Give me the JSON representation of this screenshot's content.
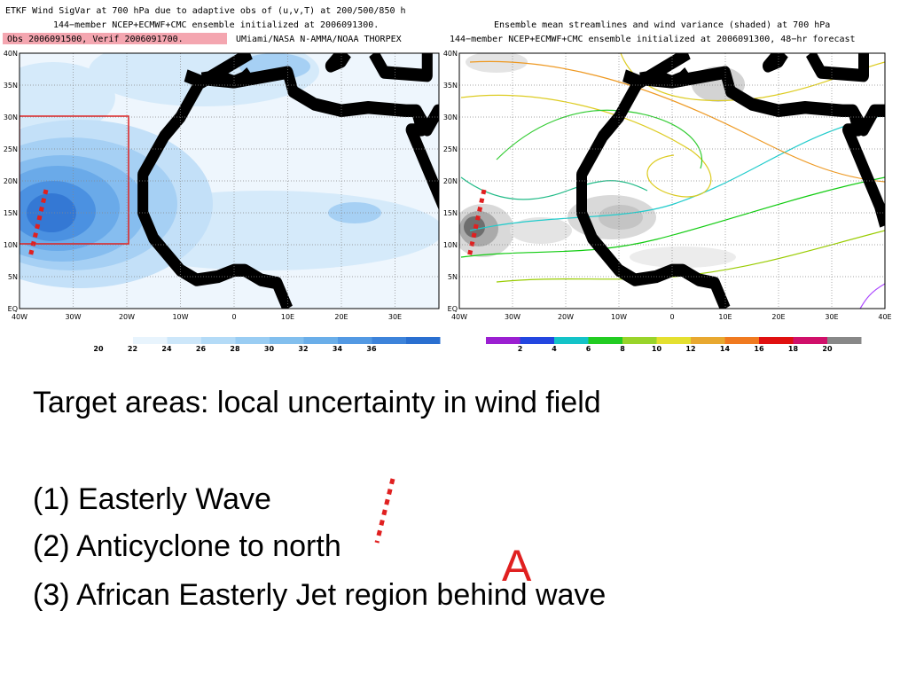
{
  "left_map": {
    "title_lines": [
      "ETKF Wind SigVar at 700 hPa due to adaptive obs of (u,v,T) at 200/500/850 h",
      "144−member NCEP+ECMWF+CMC ensemble initialized at 2006091300."
    ],
    "highlight": "Obs 2006091500, Verif 2006091700.",
    "credit": "UMiami/NASA N-AMMA/NOAA THORPEX",
    "lat_labels": [
      "40N",
      "35N",
      "30N",
      "25N",
      "20N",
      "15N",
      "10N",
      "5N",
      "EQ"
    ],
    "lon_labels": [
      "40W",
      "30W",
      "20W",
      "10W",
      "0",
      "10E",
      "20E",
      "30E"
    ],
    "colorbar_labels": [
      "20",
      "22",
      "24",
      "26",
      "28",
      "30",
      "32",
      "34",
      "36"
    ]
  },
  "right_map": {
    "title_lines": [
      "Ensemble mean streamlines and wind variance (shaded) at 700 hPa",
      "144−member NCEP+ECMWF+CMC ensemble initialized at 2006091300, 48−hr forecast"
    ],
    "lat_labels": [
      "40N",
      "35N",
      "30N",
      "25N",
      "20N",
      "15N",
      "10N",
      "5N",
      "EQ"
    ],
    "lon_labels": [
      "40W",
      "30W",
      "20W",
      "10W",
      "0",
      "10E",
      "20E",
      "30E",
      "40E"
    ],
    "colorbar_labels": [
      "2",
      "4",
      "6",
      "8",
      "10",
      "12",
      "14",
      "16",
      "18",
      "20"
    ]
  },
  "body": {
    "heading": "Target areas: local uncertainty in wind field",
    "items": [
      "(1) Easterly Wave",
      "(2) Anticyclone to north",
      "(3) African Easterly Jet region behind wave"
    ]
  },
  "marker": "A"
}
